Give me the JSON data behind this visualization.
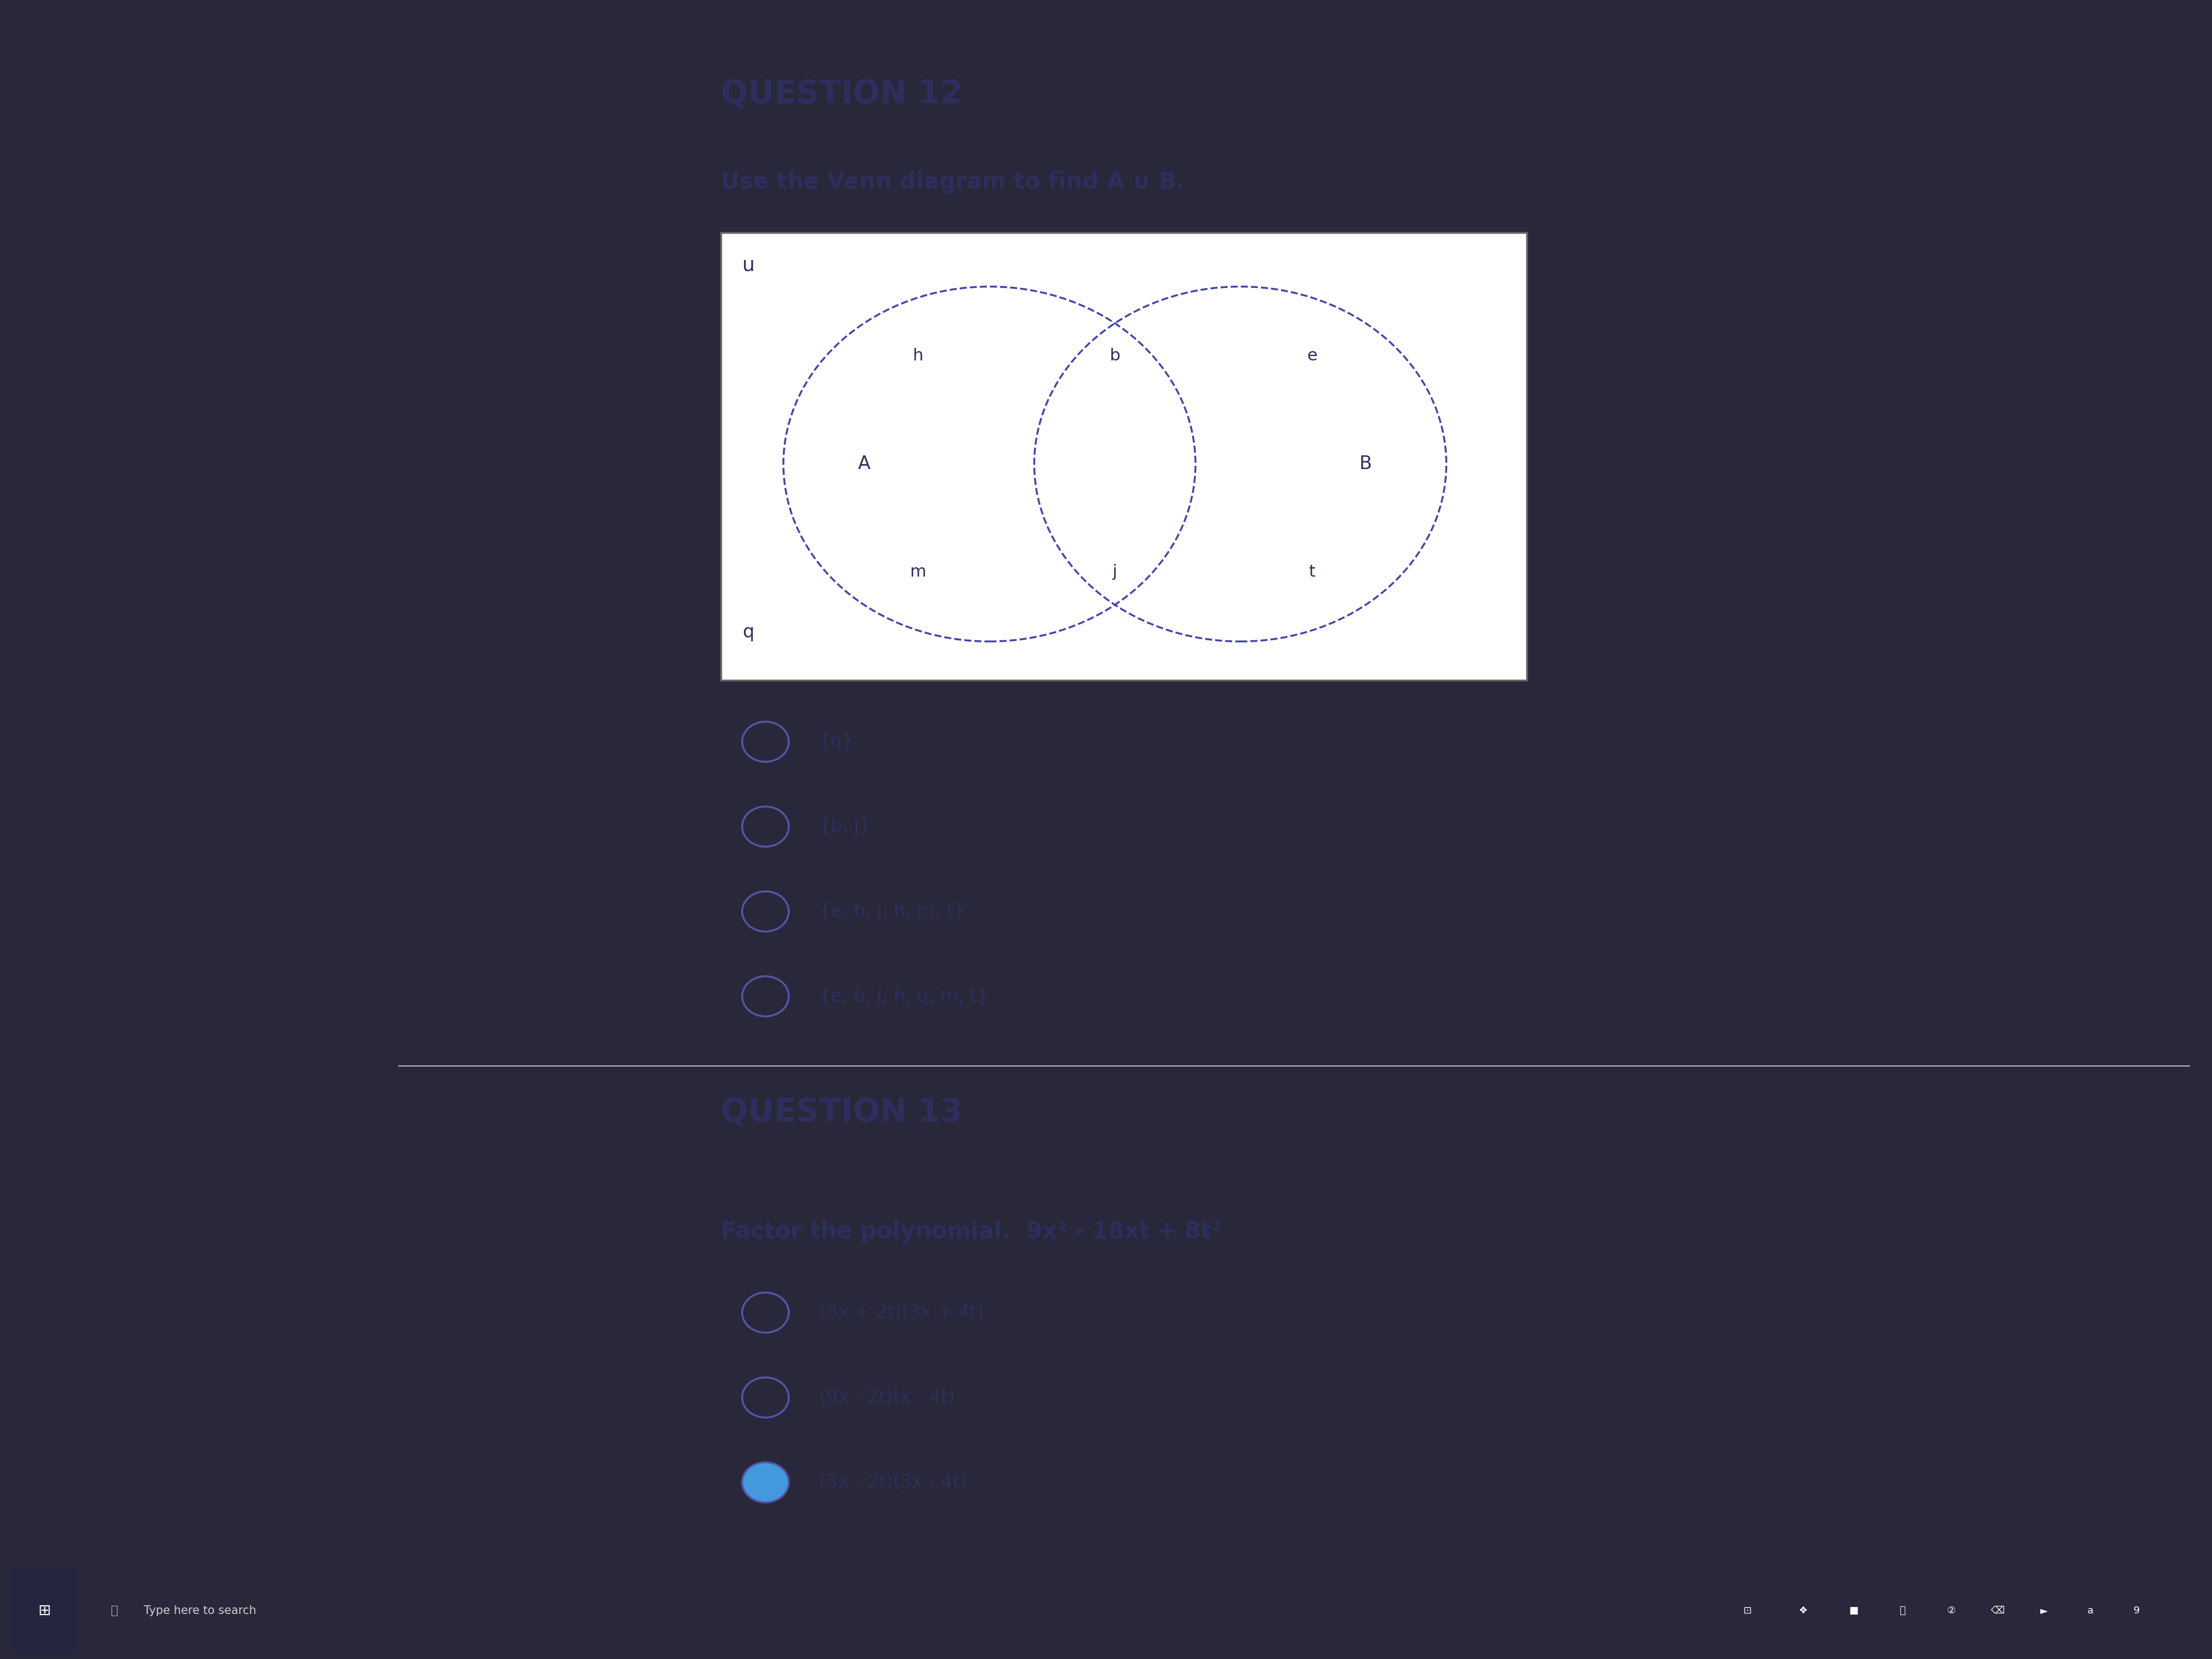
{
  "bg_color": "#28283a",
  "page_bg": "#eeeade",
  "q12_title": "QUESTION 12",
  "q12_instruction": "Use the Venn diagram to find A ∪ B.",
  "venn_u_label": "u",
  "venn_A_label": "A",
  "venn_B_label": "B",
  "venn_elements_A_only": [
    "h",
    "m"
  ],
  "venn_elements_AB": [
    "b",
    "j"
  ],
  "venn_elements_B_only": [
    "e",
    "t"
  ],
  "venn_element_outside": "q",
  "q12_options": [
    {
      "text": "{q}",
      "selected": false
    },
    {
      "text": "{b, j}",
      "selected": false
    },
    {
      "text": "{e, b, j, h, m, t}",
      "selected": false
    },
    {
      "text": "{e, b, j, h, q, m, t}",
      "selected": false
    }
  ],
  "q13_title": "QUESTION 13",
  "q13_instruction": "Factor the polynomial.  9x² - 18xt + 8t²",
  "q13_options": [
    {
      "text": "(3x + 2t)(3x + 4t)",
      "selected": false
    },
    {
      "text": "(9x - 2t)(x - 4t)",
      "selected": false
    },
    {
      "text": "(3x - 2t)(3x - 4t)",
      "selected": true
    }
  ],
  "text_color": "#2e2e5e",
  "title_color": "#2e2e5e",
  "radio_color": "#5555aa",
  "selected_color": "#4499dd",
  "divider_color": "#bbbbbb",
  "venn_circle_color": "#4444aa",
  "taskbar_bg": "#1c1c2e",
  "taskbar_text": "#cccccc"
}
